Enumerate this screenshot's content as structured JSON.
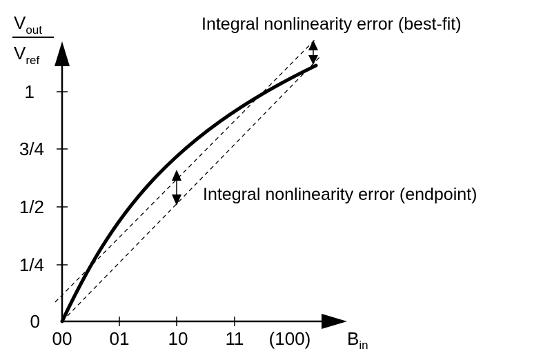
{
  "y_axis_label": {
    "numerator": "V",
    "numerator_sub": "out",
    "denominator": "V",
    "denominator_sub": "ref"
  },
  "x_axis_label": {
    "text": "B",
    "sub": "in"
  },
  "y_ticks": [
    "0",
    "1/4",
    "1/2",
    "3/4",
    "1"
  ],
  "x_ticks": [
    "00",
    "01",
    "10",
    "11",
    "(100)"
  ],
  "annotations": {
    "best_fit": "Integral nonlinearity error (best-fit)",
    "endpoint": "Integral nonlinearity error (endpoint)"
  }
}
